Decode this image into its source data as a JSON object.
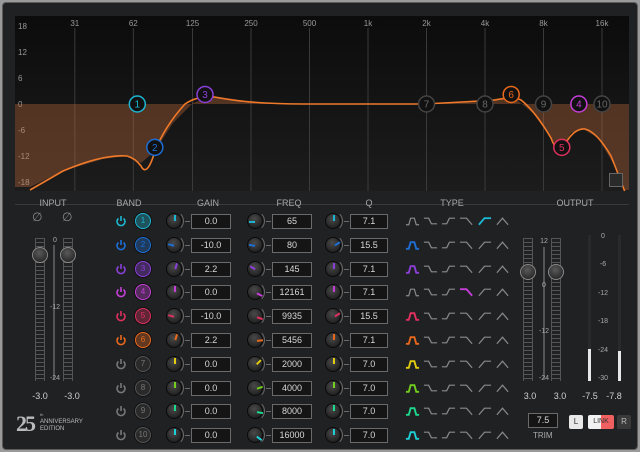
{
  "graph": {
    "db_labels": [
      "18",
      "12",
      "6",
      "0",
      "-6",
      "-12",
      "-18"
    ],
    "db_values": [
      18,
      12,
      6,
      0,
      -6,
      -12,
      -18
    ],
    "freq_labels": [
      "31",
      "62",
      "125",
      "250",
      "500",
      "1k",
      "2k",
      "4k",
      "8k",
      "16k"
    ],
    "freq_values": [
      31,
      62,
      125,
      250,
      500,
      1000,
      2000,
      4000,
      8000,
      16000
    ],
    "curve_color": "#f07a2a"
  },
  "headers": {
    "input": "INPUT",
    "band": "BAND",
    "gain": "GAIN",
    "freq": "FREQ",
    "q": "Q",
    "type": "TYPE",
    "output": "OUTPUT"
  },
  "type_icons": [
    "bell",
    "low-shelf",
    "high-shelf",
    "low-pass",
    "high-pass",
    "notch"
  ],
  "bands": [
    {
      "num": "1",
      "on": true,
      "color": "#1cb6d2",
      "gain": "0.0",
      "freq": "65",
      "q": "7.1",
      "type": 4
    },
    {
      "num": "2",
      "on": true,
      "color": "#1d6fd6",
      "gain": "-10.0",
      "freq": "80",
      "q": "15.5",
      "type": 0
    },
    {
      "num": "3",
      "on": true,
      "color": "#8b3fd9",
      "gain": "2.2",
      "freq": "145",
      "q": "7.1",
      "type": 0
    },
    {
      "num": "4",
      "on": true,
      "color": "#c43fd6",
      "gain": "0.0",
      "freq": "12161",
      "q": "7.1",
      "type": 3
    },
    {
      "num": "5",
      "on": true,
      "color": "#e0305f",
      "gain": "-10.0",
      "freq": "9935",
      "q": "15.5",
      "type": 0
    },
    {
      "num": "6",
      "on": true,
      "color": "#e8681c",
      "gain": "2.2",
      "freq": "5456",
      "q": "7.1",
      "type": 0
    },
    {
      "num": "7",
      "on": false,
      "color": "#e2cc10",
      "gain": "0.0",
      "freq": "2000",
      "q": "7.0",
      "type": 0
    },
    {
      "num": "8",
      "on": false,
      "color": "#72cf1e",
      "gain": "0.0",
      "freq": "4000",
      "q": "7.0",
      "type": 0
    },
    {
      "num": "9",
      "on": false,
      "color": "#1ed88e",
      "gain": "0.0",
      "freq": "8000",
      "q": "7.0",
      "type": 0
    },
    {
      "num": "10",
      "on": false,
      "color": "#1ecfd6",
      "gain": "0.0",
      "freq": "16000",
      "q": "7.0",
      "type": 0
    }
  ],
  "input": {
    "phase_icon": "phase-invert-icon",
    "scale": [
      "0",
      "-12",
      "-24"
    ],
    "left": "-3.0",
    "right": "-3.0",
    "fader_db": [
      -3.0,
      -3.0
    ]
  },
  "output": {
    "fader_scale": [
      "12",
      "0",
      "-12",
      "-24"
    ],
    "meter_scale": [
      "0",
      "-6",
      "-12",
      "-18",
      "-24",
      "-30"
    ],
    "fader_left": "3.0",
    "fader_right": "3.0",
    "meter_left": "-7.5",
    "meter_right": "-7.8",
    "meter_levels_db": [
      -7.5,
      -7.8
    ],
    "trim": "7.5",
    "trim_label": "TRIM",
    "l_label": "L",
    "link_label": "LINK",
    "r_label": "R"
  },
  "logo": {
    "number": "25",
    "line1": "ANNIVERSARY",
    "line2": "EDITION",
    "sup": "th"
  }
}
